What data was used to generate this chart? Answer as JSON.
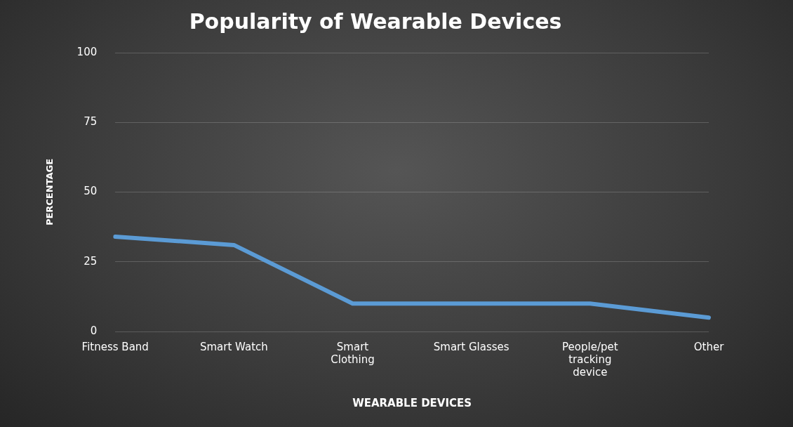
{
  "chart_data": {
    "type": "line",
    "title": "Popularity of Wearable Devices",
    "xlabel": "WEARABLE DEVICES",
    "ylabel": "PERCENTAGE",
    "categories": [
      "Fitness Band",
      "Smart Watch",
      "Smart Clothing",
      "Smart Glasses",
      "People/pet tracking device",
      "Other"
    ],
    "series": [
      {
        "color": "#5b9bd5",
        "values": [
          34,
          31,
          10,
          10,
          10,
          5
        ]
      }
    ],
    "ylim": [
      0,
      100
    ],
    "yticks": [
      0,
      25,
      50,
      75,
      100
    ],
    "grid": "y",
    "legend": false,
    "marker": "none",
    "line_style": "solid"
  }
}
